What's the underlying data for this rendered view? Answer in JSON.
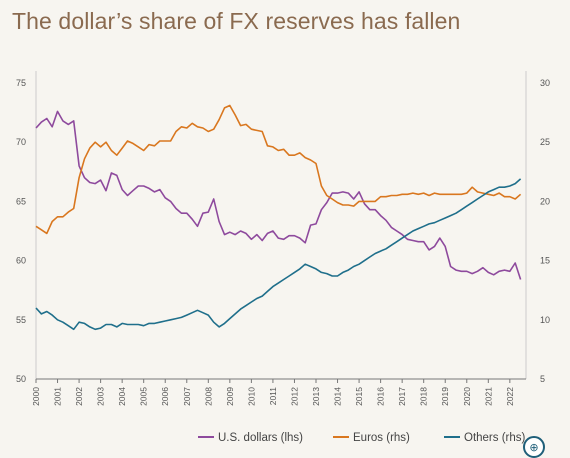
{
  "page": {
    "title": "The dollar’s share of FX reserves has fallen",
    "zoom_icon": "zoom-in-icon",
    "zoom_glyph": "⊕"
  },
  "colors": {
    "usd": "#8e4a9d",
    "eur": "#d9771f",
    "others": "#1f6f8b",
    "axis": "#777777",
    "tick_text": "#555555",
    "legend_text": "#444444"
  },
  "chart_data": {
    "type": "line",
    "title": "The dollar’s share of FX reserves has fallen",
    "xlabel": "",
    "ylabel_left": "",
    "ylabel_right": "",
    "x_ticks": [
      "2000",
      "2001",
      "2002",
      "2003",
      "2004",
      "2005",
      "2006",
      "2007",
      "2008",
      "2009",
      "2010",
      "2011",
      "2012",
      "2013",
      "2014",
      "2015",
      "2016",
      "2017",
      "2018",
      "2019",
      "2020",
      "2021",
      "2022"
    ],
    "ylim_left": [
      50,
      75
    ],
    "yticks_left": [
      50,
      55,
      60,
      65,
      70,
      75
    ],
    "ylim_right": [
      5,
      30
    ],
    "yticks_right": [
      5,
      10,
      15,
      20,
      25,
      30
    ],
    "xlim": [
      2000.0,
      2022.75
    ],
    "grid": false,
    "legend_position": "bottom-right",
    "series": [
      {
        "name": "U.S. dollars (lhs)",
        "axis": "left",
        "color": "#8e4a9d",
        "x": [
          2000.0,
          2000.25,
          2000.5,
          2000.75,
          2001.0,
          2001.25,
          2001.5,
          2001.75,
          2002.0,
          2002.25,
          2002.5,
          2002.75,
          2003.0,
          2003.25,
          2003.5,
          2003.75,
          2004.0,
          2004.25,
          2004.5,
          2004.75,
          2005.0,
          2005.25,
          2005.5,
          2005.75,
          2006.0,
          2006.25,
          2006.5,
          2006.75,
          2007.0,
          2007.25,
          2007.5,
          2007.75,
          2008.0,
          2008.25,
          2008.5,
          2008.75,
          2009.0,
          2009.25,
          2009.5,
          2009.75,
          2010.0,
          2010.25,
          2010.5,
          2010.75,
          2011.0,
          2011.25,
          2011.5,
          2011.75,
          2012.0,
          2012.25,
          2012.5,
          2012.75,
          2013.0,
          2013.25,
          2013.5,
          2013.75,
          2014.0,
          2014.25,
          2014.5,
          2014.75,
          2015.0,
          2015.25,
          2015.5,
          2015.75,
          2016.0,
          2016.25,
          2016.5,
          2016.75,
          2017.0,
          2017.25,
          2017.5,
          2017.75,
          2018.0,
          2018.25,
          2018.5,
          2018.75,
          2019.0,
          2019.25,
          2019.5,
          2019.75,
          2020.0,
          2020.25,
          2020.5,
          2020.75,
          2021.0,
          2021.25,
          2021.5,
          2021.75,
          2022.0,
          2022.25,
          2022.5
        ],
        "values": [
          71.2,
          71.7,
          72.0,
          71.3,
          72.6,
          71.8,
          71.5,
          71.8,
          68.0,
          67.0,
          66.6,
          66.5,
          66.8,
          65.9,
          67.4,
          67.2,
          66.0,
          65.5,
          65.9,
          66.3,
          66.3,
          66.1,
          65.8,
          66.0,
          65.3,
          65.0,
          64.4,
          64.0,
          64.0,
          63.5,
          62.9,
          64.0,
          64.1,
          65.2,
          63.3,
          62.2,
          62.4,
          62.2,
          62.5,
          62.3,
          61.8,
          62.2,
          61.7,
          62.3,
          62.5,
          61.9,
          61.8,
          62.1,
          62.1,
          61.9,
          61.5,
          63.0,
          63.1,
          64.3,
          64.9,
          65.7,
          65.7,
          65.8,
          65.7,
          65.2,
          65.8,
          64.8,
          64.3,
          64.3,
          63.8,
          63.4,
          62.8,
          62.5,
          62.2,
          61.8,
          61.7,
          61.6,
          61.6,
          60.9,
          61.2,
          61.9,
          61.2,
          59.5,
          59.2,
          59.1,
          59.1,
          58.9,
          59.1,
          59.4,
          59.0,
          58.8,
          59.1,
          59.2,
          59.1,
          59.8,
          58.4
        ]
      },
      {
        "name": "Euros (rhs)",
        "axis": "right",
        "color": "#d9771f",
        "x": [
          2000.0,
          2000.25,
          2000.5,
          2000.75,
          2001.0,
          2001.25,
          2001.5,
          2001.75,
          2002.0,
          2002.25,
          2002.5,
          2002.75,
          2003.0,
          2003.25,
          2003.5,
          2003.75,
          2004.0,
          2004.25,
          2004.5,
          2004.75,
          2005.0,
          2005.25,
          2005.5,
          2005.75,
          2006.0,
          2006.25,
          2006.5,
          2006.75,
          2007.0,
          2007.25,
          2007.5,
          2007.75,
          2008.0,
          2008.25,
          2008.5,
          2008.75,
          2009.0,
          2009.25,
          2009.5,
          2009.75,
          2010.0,
          2010.25,
          2010.5,
          2010.75,
          2011.0,
          2011.25,
          2011.5,
          2011.75,
          2012.0,
          2012.25,
          2012.5,
          2012.75,
          2013.0,
          2013.25,
          2013.5,
          2013.75,
          2014.0,
          2014.25,
          2014.5,
          2014.75,
          2015.0,
          2015.25,
          2015.5,
          2015.75,
          2016.0,
          2016.25,
          2016.5,
          2016.75,
          2017.0,
          2017.25,
          2017.5,
          2017.75,
          2018.0,
          2018.25,
          2018.5,
          2018.75,
          2019.0,
          2019.25,
          2019.5,
          2019.75,
          2020.0,
          2020.25,
          2020.5,
          2020.75,
          2021.0,
          2021.25,
          2021.5,
          2021.75,
          2022.0,
          2022.25,
          2022.5
        ],
        "values": [
          17.9,
          17.6,
          17.3,
          18.3,
          18.7,
          18.7,
          19.1,
          19.4,
          22.0,
          23.6,
          24.5,
          25.0,
          24.6,
          25.0,
          24.3,
          23.9,
          24.5,
          25.1,
          24.9,
          24.6,
          24.3,
          24.8,
          24.7,
          25.1,
          25.1,
          25.1,
          25.9,
          26.3,
          26.2,
          26.6,
          26.3,
          26.2,
          25.9,
          26.1,
          26.9,
          27.9,
          28.1,
          27.3,
          26.4,
          26.5,
          26.1,
          26.0,
          25.9,
          24.7,
          24.6,
          24.3,
          24.4,
          23.9,
          23.9,
          24.1,
          23.7,
          23.5,
          23.2,
          21.3,
          20.5,
          20.2,
          19.9,
          19.7,
          19.7,
          19.6,
          20.0,
          20.0,
          20.0,
          20.0,
          20.4,
          20.4,
          20.5,
          20.5,
          20.6,
          20.6,
          20.7,
          20.6,
          20.7,
          20.5,
          20.7,
          20.6,
          20.6,
          20.6,
          20.6,
          20.6,
          20.7,
          21.2,
          20.8,
          20.7,
          20.6,
          20.5,
          20.7,
          20.4,
          20.4,
          20.2,
          20.6
        ]
      },
      {
        "name": "Others (rhs)",
        "axis": "right",
        "color": "#1f6f8b",
        "x": [
          2000.0,
          2000.25,
          2000.5,
          2000.75,
          2001.0,
          2001.25,
          2001.5,
          2001.75,
          2002.0,
          2002.25,
          2002.5,
          2002.75,
          2003.0,
          2003.25,
          2003.5,
          2003.75,
          2004.0,
          2004.25,
          2004.5,
          2004.75,
          2005.0,
          2005.25,
          2005.5,
          2005.75,
          2006.0,
          2006.25,
          2006.5,
          2006.75,
          2007.0,
          2007.25,
          2007.5,
          2007.75,
          2008.0,
          2008.25,
          2008.5,
          2008.75,
          2009.0,
          2009.25,
          2009.5,
          2009.75,
          2010.0,
          2010.25,
          2010.5,
          2010.75,
          2011.0,
          2011.25,
          2011.5,
          2011.75,
          2012.0,
          2012.25,
          2012.5,
          2012.75,
          2013.0,
          2013.25,
          2013.5,
          2013.75,
          2014.0,
          2014.25,
          2014.5,
          2014.75,
          2015.0,
          2015.25,
          2015.5,
          2015.75,
          2016.0,
          2016.25,
          2016.5,
          2016.75,
          2017.0,
          2017.25,
          2017.5,
          2017.75,
          2018.0,
          2018.25,
          2018.5,
          2018.75,
          2019.0,
          2019.25,
          2019.5,
          2019.75,
          2020.0,
          2020.25,
          2020.5,
          2020.75,
          2021.0,
          2021.25,
          2021.5,
          2021.75,
          2022.0,
          2022.25,
          2022.5
        ],
        "values": [
          11.0,
          10.5,
          10.7,
          10.4,
          10.0,
          9.8,
          9.5,
          9.2,
          9.8,
          9.7,
          9.4,
          9.2,
          9.3,
          9.6,
          9.6,
          9.4,
          9.7,
          9.6,
          9.6,
          9.6,
          9.5,
          9.7,
          9.7,
          9.8,
          9.9,
          10.0,
          10.1,
          10.2,
          10.4,
          10.6,
          10.8,
          10.6,
          10.4,
          9.8,
          9.4,
          9.7,
          10.1,
          10.5,
          10.9,
          11.2,
          11.5,
          11.8,
          12.0,
          12.4,
          12.8,
          13.1,
          13.4,
          13.7,
          14.0,
          14.3,
          14.7,
          14.5,
          14.3,
          14.0,
          13.9,
          13.7,
          13.7,
          14.0,
          14.2,
          14.5,
          14.7,
          15.0,
          15.3,
          15.6,
          15.8,
          16.0,
          16.3,
          16.6,
          16.9,
          17.2,
          17.5,
          17.7,
          17.9,
          18.1,
          18.2,
          18.4,
          18.6,
          18.8,
          19.0,
          19.3,
          19.6,
          19.9,
          20.2,
          20.5,
          20.8,
          21.0,
          21.2,
          21.2,
          21.3,
          21.5,
          21.9
        ]
      }
    ]
  }
}
